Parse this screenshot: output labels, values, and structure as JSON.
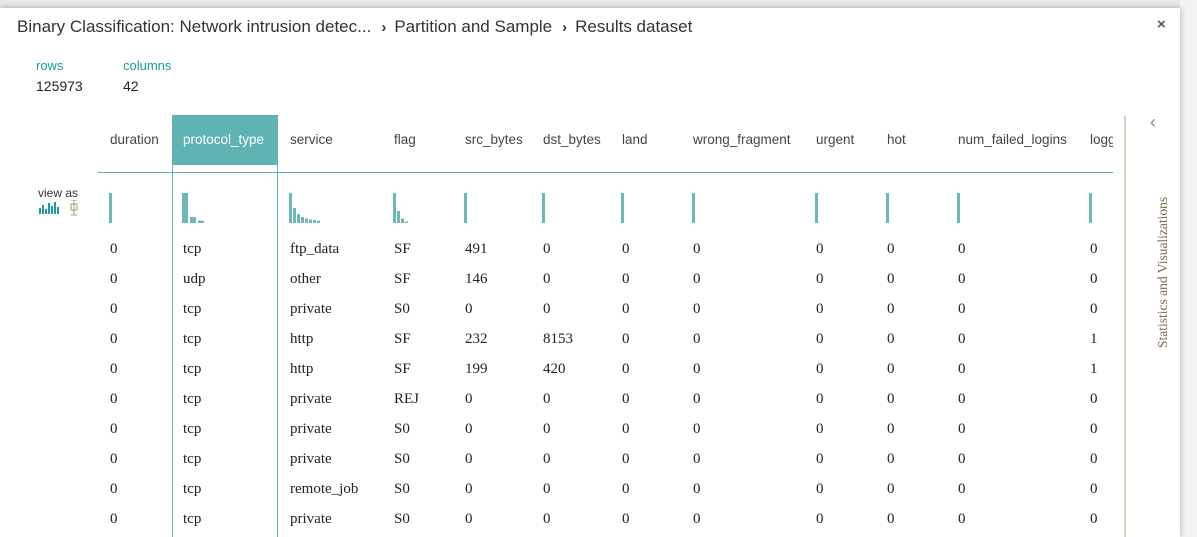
{
  "breadcrumb": [
    "Binary Classification: Network intrusion detec...",
    "Partition and Sample",
    "Results dataset"
  ],
  "close": "×",
  "summary": {
    "rows_label": "rows",
    "rows": "125973",
    "columns_label": "columns",
    "columns": "42"
  },
  "view_as": "view as",
  "side_panel": {
    "toggle": "‹",
    "title": "Statistics and Visualizations"
  },
  "table": {
    "columns": [
      "duration",
      "protocol_type",
      "service",
      "flag",
      "src_bytes",
      "dst_bytes",
      "land",
      "wrong_fragment",
      "urgent",
      "hot",
      "num_failed_logins",
      "logged_in"
    ],
    "rows": [
      [
        "0",
        "tcp",
        "ftp_data",
        "SF",
        "491",
        "0",
        "0",
        "0",
        "0",
        "0",
        "0",
        "0"
      ],
      [
        "0",
        "udp",
        "other",
        "SF",
        "146",
        "0",
        "0",
        "0",
        "0",
        "0",
        "0",
        "0"
      ],
      [
        "0",
        "tcp",
        "private",
        "S0",
        "0",
        "0",
        "0",
        "0",
        "0",
        "0",
        "0",
        "0"
      ],
      [
        "0",
        "tcp",
        "http",
        "SF",
        "232",
        "8153",
        "0",
        "0",
        "0",
        "0",
        "0",
        "1"
      ],
      [
        "0",
        "tcp",
        "http",
        "SF",
        "199",
        "420",
        "0",
        "0",
        "0",
        "0",
        "0",
        "1"
      ],
      [
        "0",
        "tcp",
        "private",
        "REJ",
        "0",
        "0",
        "0",
        "0",
        "0",
        "0",
        "0",
        "0"
      ],
      [
        "0",
        "tcp",
        "private",
        "S0",
        "0",
        "0",
        "0",
        "0",
        "0",
        "0",
        "0",
        "0"
      ],
      [
        "0",
        "tcp",
        "private",
        "S0",
        "0",
        "0",
        "0",
        "0",
        "0",
        "0",
        "0",
        "0"
      ],
      [
        "0",
        "tcp",
        "remote_job",
        "S0",
        "0",
        "0",
        "0",
        "0",
        "0",
        "0",
        "0",
        "0"
      ],
      [
        "0",
        "tcp",
        "private",
        "S0",
        "0",
        "0",
        "0",
        "0",
        "0",
        "0",
        "0",
        "0"
      ]
    ]
  }
}
